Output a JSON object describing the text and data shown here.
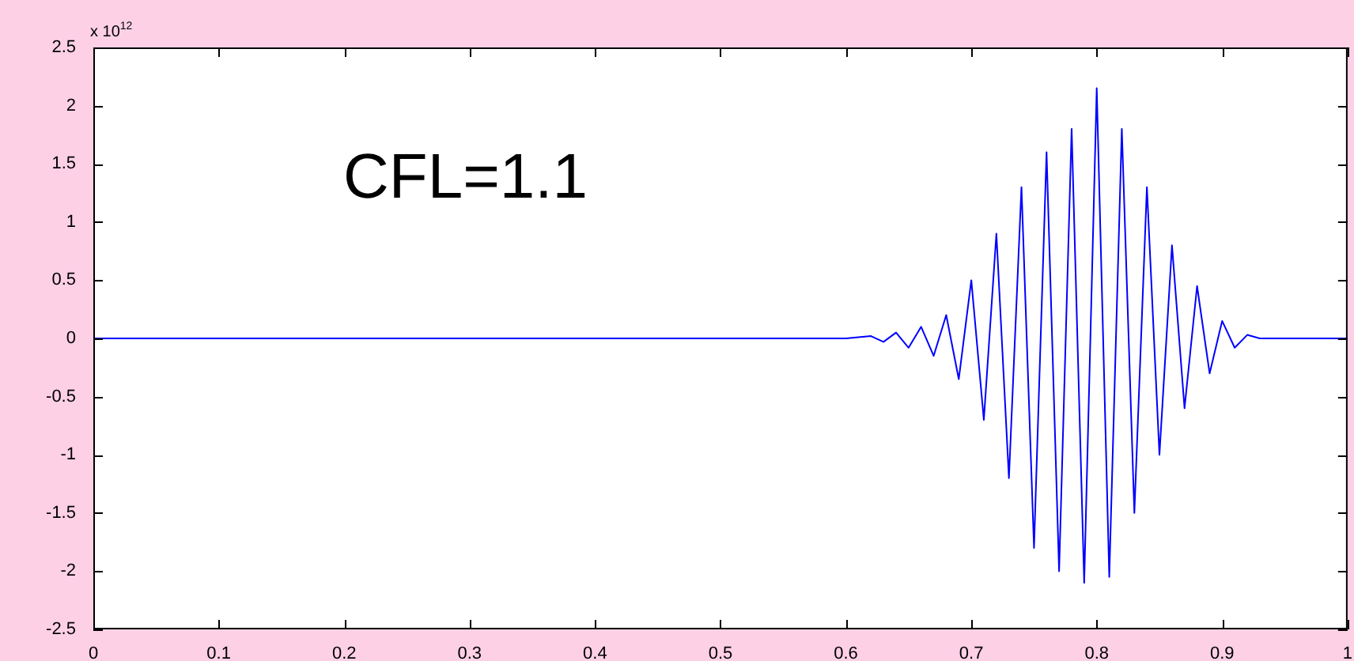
{
  "chart_data": {
    "type": "line",
    "annotations": [
      "x 10$^{12}$",
      "CFL=1.1"
    ],
    "series": [
      {
        "color": "#0000ff",
        "x": [
          0,
          0.6,
          0.62,
          0.63,
          0.64,
          0.65,
          0.66,
          0.67,
          0.68,
          0.69,
          0.7,
          0.71,
          0.72,
          0.73,
          0.74,
          0.75,
          0.76,
          0.77,
          0.78,
          0.79,
          0.8,
          0.81,
          0.82,
          0.83,
          0.84,
          0.85,
          0.86,
          0.87,
          0.88,
          0.89,
          0.9,
          0.91,
          0.92,
          0.93,
          1
        ],
        "values": [
          0,
          0,
          0.02,
          -0.03,
          0.05,
          -0.08,
          0.1,
          -0.15,
          0.2,
          -0.35,
          0.5,
          -0.7,
          0.9,
          -1.2,
          1.3,
          -1.8,
          1.6,
          -2.0,
          1.8,
          -2.1,
          2.15,
          -2.05,
          1.8,
          -1.5,
          1.3,
          -1.0,
          0.8,
          -0.6,
          0.45,
          -0.3,
          0.15,
          -0.08,
          0.03,
          0,
          0
        ]
      }
    ],
    "xlim": [
      0,
      1
    ],
    "xticks": [
      0,
      0.1,
      0.2,
      0.3,
      0.4,
      0.5,
      0.6,
      0.7,
      0.8,
      0.9,
      1
    ],
    "ylim": [
      -2.5,
      2.5
    ],
    "yticks": [
      -2.5,
      -2,
      -1.5,
      -1,
      -0.5,
      0,
      0.5,
      1,
      1.5,
      2,
      2.5
    ],
    "grid": false,
    "legend": false,
    "marker": "none",
    "line_style": "solid"
  }
}
